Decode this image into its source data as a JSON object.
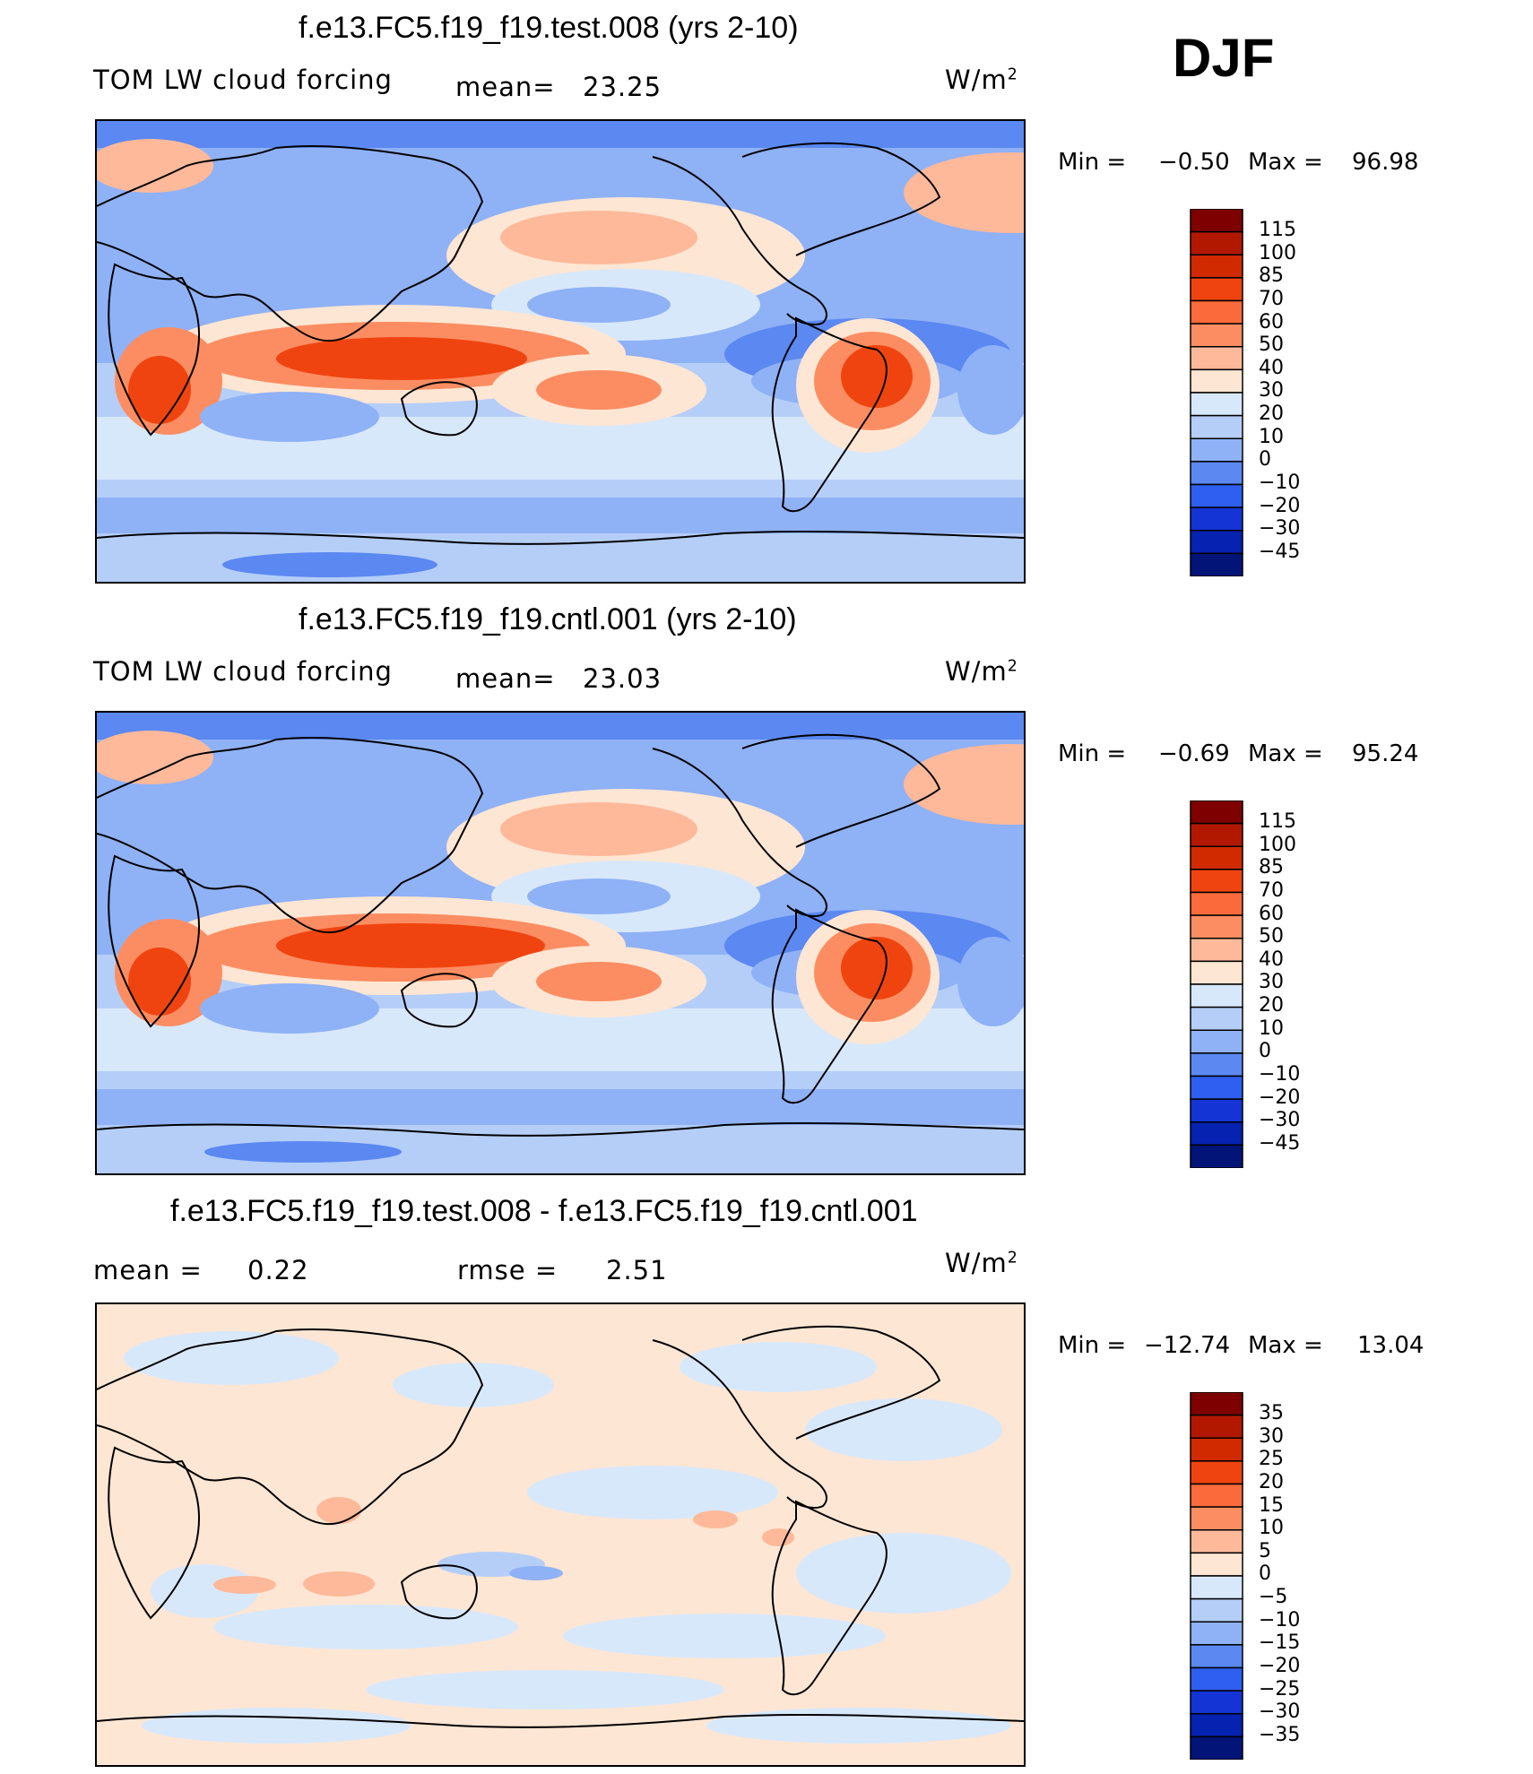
{
  "season": "DJF",
  "panels": [
    {
      "title": "f.e13.FC5.f19_f19.test.008 (yrs 2-10)",
      "left_label": "TOM LW cloud forcing",
      "mid_label": "mean=",
      "mid_value": "23.25",
      "units": "W/m",
      "units_sup": "2",
      "min_label": "Min =",
      "min_value": "−0.50",
      "max_label": "Max =",
      "max_value": "96.98",
      "kind": "field"
    },
    {
      "title": "f.e13.FC5.f19_f19.cntl.001 (yrs 2-10)",
      "left_label": "TOM LW cloud forcing",
      "mid_label": "mean=",
      "mid_value": "23.03",
      "units": "W/m",
      "units_sup": "2",
      "min_label": "Min =",
      "min_value": "−0.69",
      "max_label": "Max =",
      "max_value": "95.24",
      "kind": "field"
    },
    {
      "title": "f.e13.FC5.f19_f19.test.008 - f.e13.FC5.f19_f19.cntl.001",
      "left_label": "mean =",
      "left_value": "0.22",
      "mid_label": "rmse =",
      "mid_value": "2.51",
      "units": "W/m",
      "units_sup": "2",
      "min_label": "Min =",
      "min_value": "−12.74",
      "max_label": "Max =",
      "max_value": "13.04",
      "kind": "diff"
    }
  ],
  "colorbars": {
    "field_levels": [
      "115",
      "100",
      "85",
      "70",
      "60",
      "50",
      "40",
      "30",
      "20",
      "10",
      "0",
      "−10",
      "−20",
      "−30",
      "−45"
    ],
    "diff_levels": [
      "35",
      "30",
      "25",
      "20",
      "15",
      "10",
      "5",
      "0",
      "−5",
      "−10",
      "−15",
      "−20",
      "−25",
      "−30",
      "−35"
    ],
    "field_colors": [
      "#7f0000",
      "#b21800",
      "#d12a00",
      "#f04410",
      "#fb6a3a",
      "#fc8d62",
      "#fdb99a",
      "#fde6d3",
      "#d8e8fb",
      "#b5cef8",
      "#8fb1f6",
      "#5b88f1",
      "#2f5ff0",
      "#1434d6",
      "#0622b0",
      "#031478"
    ],
    "diff_colors": [
      "#7f0000",
      "#b21800",
      "#d12a00",
      "#f04410",
      "#fb6a3a",
      "#fc8d62",
      "#fdb99a",
      "#fde6d3",
      "#d8e8fb",
      "#b5cef8",
      "#8fb1f6",
      "#5b88f1",
      "#2f5ff0",
      "#1434d6",
      "#0622b0",
      "#031478"
    ]
  }
}
